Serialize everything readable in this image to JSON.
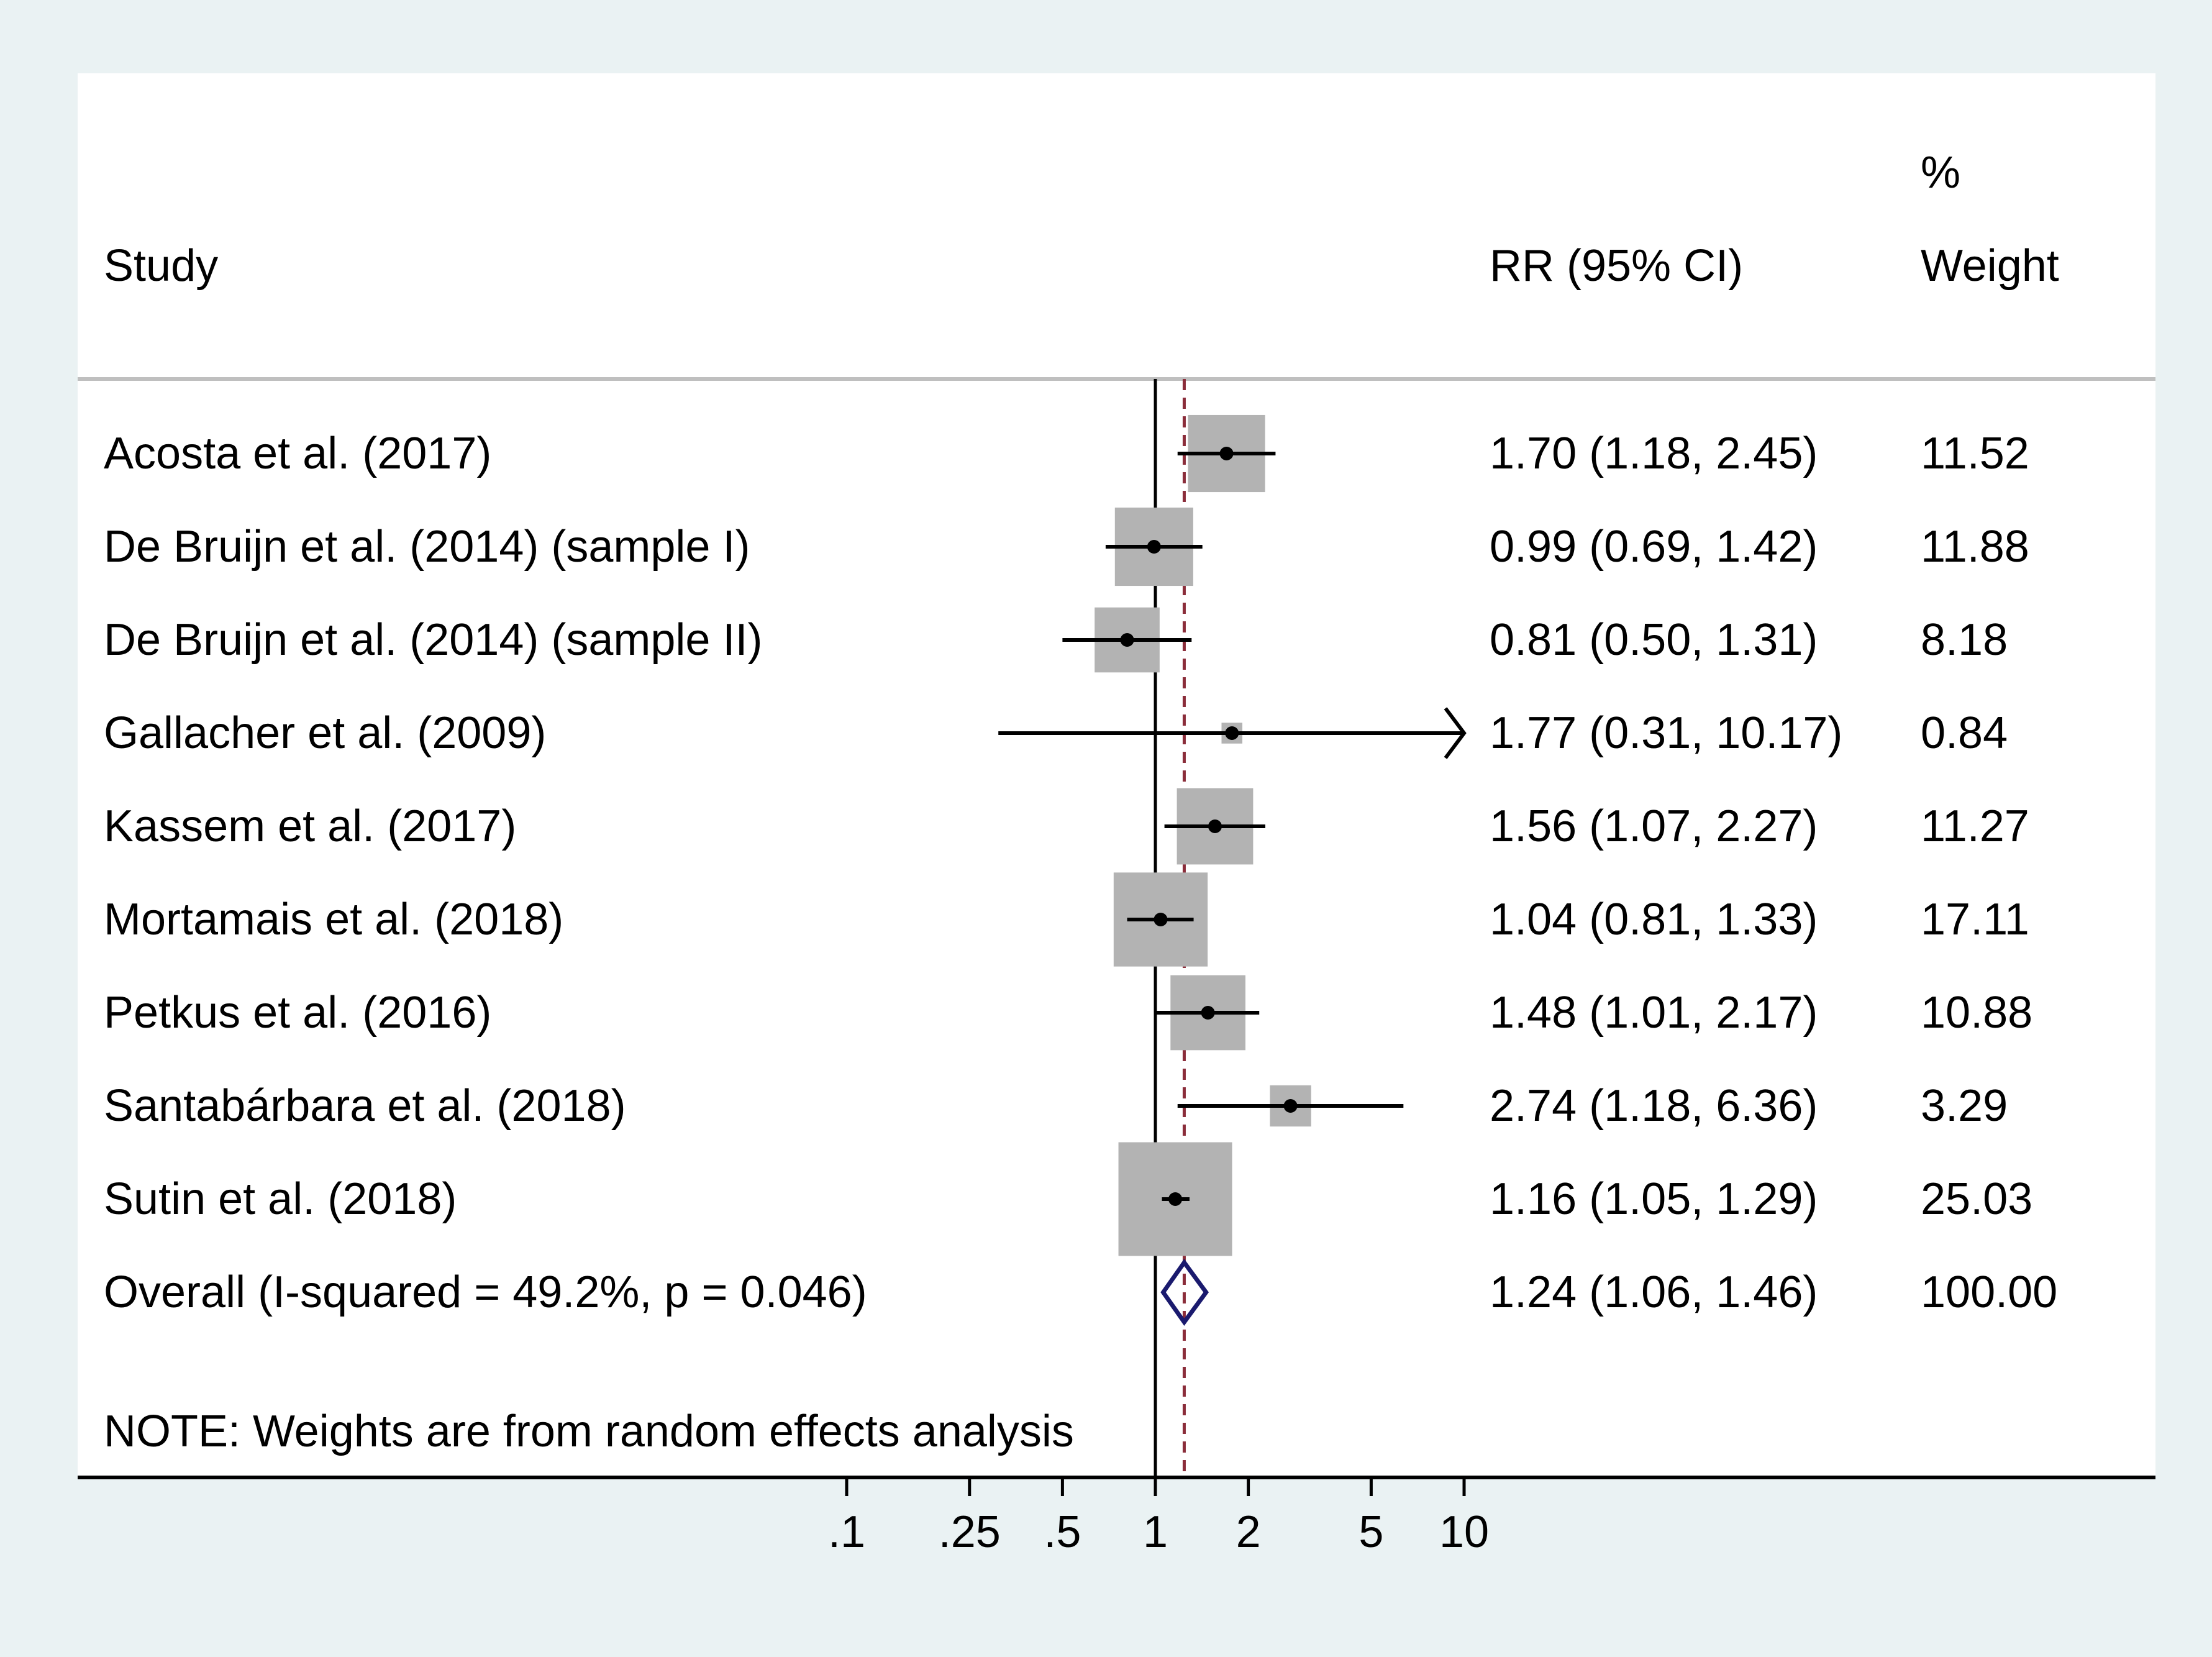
{
  "chart_data": {
    "type": "forest",
    "headers": {
      "study": "Study",
      "effect": "RR (95% CI)",
      "weight_top": "%",
      "weight": "Weight"
    },
    "studies": [
      {
        "name": "Acosta et al. (2017)",
        "rr": 1.7,
        "lo": 1.18,
        "hi": 2.45,
        "ci_text": "1.70 (1.18, 2.45)",
        "weight": 11.52,
        "weight_text": "11.52"
      },
      {
        "name": "De Bruijn et al. (2014) (sample I)",
        "rr": 0.99,
        "lo": 0.69,
        "hi": 1.42,
        "ci_text": "0.99 (0.69, 1.42)",
        "weight": 11.88,
        "weight_text": "11.88"
      },
      {
        "name": "De Bruijn et al. (2014) (sample II)",
        "rr": 0.81,
        "lo": 0.5,
        "hi": 1.31,
        "ci_text": "0.81 (0.50, 1.31)",
        "weight": 8.18,
        "weight_text": "8.18"
      },
      {
        "name": "Gallacher et al. (2009)",
        "rr": 1.77,
        "lo": 0.31,
        "hi": 10.17,
        "ci_text": "1.77 (0.31, 10.17)",
        "weight": 0.84,
        "weight_text": "0.84"
      },
      {
        "name": "Kassem et al. (2017)",
        "rr": 1.56,
        "lo": 1.07,
        "hi": 2.27,
        "ci_text": "1.56 (1.07, 2.27)",
        "weight": 11.27,
        "weight_text": "11.27"
      },
      {
        "name": "Mortamais et al. (2018)",
        "rr": 1.04,
        "lo": 0.81,
        "hi": 1.33,
        "ci_text": "1.04 (0.81, 1.33)",
        "weight": 17.11,
        "weight_text": "17.11"
      },
      {
        "name": "Petkus et al. (2016)",
        "rr": 1.48,
        "lo": 1.01,
        "hi": 2.17,
        "ci_text": "1.48 (1.01, 2.17)",
        "weight": 10.88,
        "weight_text": "10.88"
      },
      {
        "name": "Santabárbara et al. (2018)",
        "rr": 2.74,
        "lo": 1.18,
        "hi": 6.36,
        "ci_text": "2.74 (1.18, 6.36)",
        "weight": 3.29,
        "weight_text": "3.29"
      },
      {
        "name": "Sutin et al. (2018)",
        "rr": 1.16,
        "lo": 1.05,
        "hi": 1.29,
        "ci_text": "1.16 (1.05, 1.29)",
        "weight": 25.03,
        "weight_text": "25.03"
      }
    ],
    "overall": {
      "label": "Overall  (I-squared = 49.2%, p = 0.046)",
      "rr": 1.24,
      "lo": 1.06,
      "hi": 1.46,
      "ci_text": "1.24 (1.06, 1.46)",
      "weight_text": "100.00"
    },
    "note": "NOTE: Weights are from random effects analysis",
    "x_scale": "log",
    "xlim": [
      0.1,
      10
    ],
    "x_ticks": [
      0.1,
      0.25,
      0.5,
      1,
      2,
      5,
      10
    ],
    "x_tick_labels": [
      ".1",
      ".25",
      ".5",
      "1",
      "2",
      "5",
      "10"
    ],
    "null_value": 1,
    "colors": {
      "outer_bg": "#eaf2f3",
      "plot_bg": "#ffffff",
      "box": "#b3b3b3",
      "ci": "#000000",
      "overall_line": "#8b2d3a",
      "diamond": "#1a1a6e",
      "divider": "#bfbfbf"
    }
  }
}
